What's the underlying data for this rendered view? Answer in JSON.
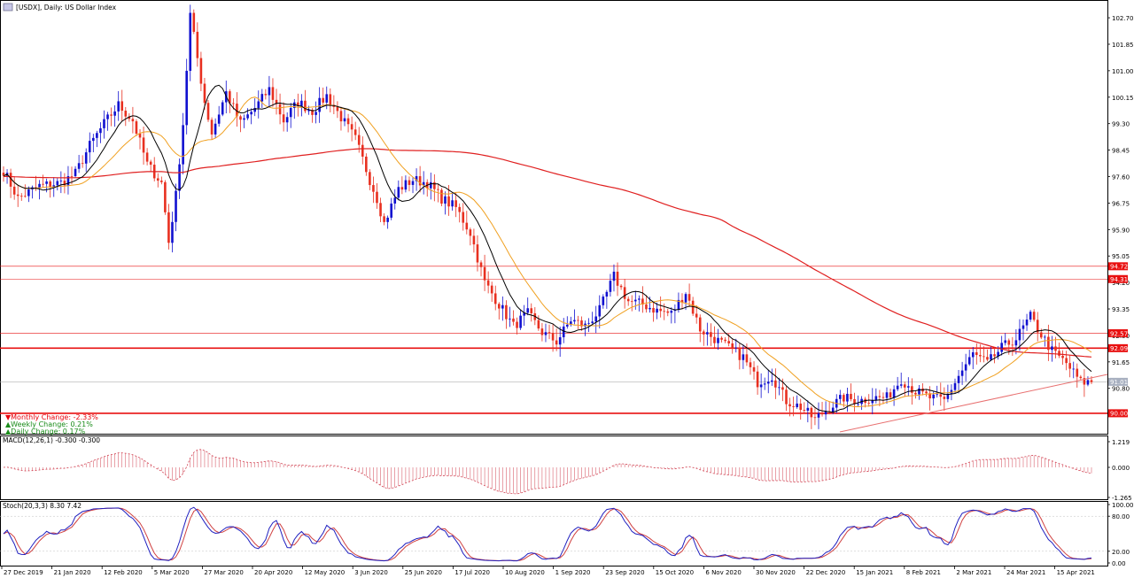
{
  "header": {
    "title": "[USDX], Daily:  US Dollar Index"
  },
  "stats": {
    "monthly": "▼Monthly Change: -2.33%",
    "weekly": "▲Weekly Change: 0.21%",
    "daily": "▲Daily Change: 0.17%"
  },
  "colors": {
    "bull": "#1010d0",
    "bear": "#e83020",
    "ma_fast": "#000000",
    "ma_mid": "#f0a020",
    "ma_slow": "#e02020",
    "level": "#e81010",
    "macd": "#d04050",
    "stoch_main": "#2020c0",
    "stoch_signal": "#d04040"
  },
  "chart_data": [
    {
      "type": "candlestick",
      "title": "[USDX], Daily:  US Dollar Index",
      "ylim": [
        89.4,
        103.1
      ],
      "price_ticks": [
        "102.70",
        "101.85",
        "101.00",
        "100.15",
        "99.30",
        "98.45",
        "97.60",
        "96.75",
        "95.90",
        "95.05",
        "94.20",
        "93.35",
        "92.50",
        "91.65",
        "90.80"
      ],
      "price_tick_values": [
        102.7,
        101.85,
        101.0,
        100.15,
        99.3,
        98.45,
        97.6,
        96.75,
        95.9,
        95.05,
        94.2,
        93.35,
        92.5,
        91.65,
        90.8
      ],
      "date_labels": [
        "27 Dec 2019",
        "21 Jan 2020",
        "12 Feb 2020",
        "5 Mar 2020",
        "27 Mar 2020",
        "20 Apr 2020",
        "12 May 2020",
        "3 Jun 2020",
        "25 Jun 2020",
        "17 Jul 2020",
        "10 Aug 2020",
        "1 Sep 2020",
        "23 Sep 2020",
        "15 Oct 2020",
        "6 Nov 2020",
        "30 Nov 2020",
        "22 Dec 2020",
        "15 Jan 2021",
        "8 Feb 2021",
        "2 Mar 2021",
        "24 Mar 2021",
        "15 Apr 2021"
      ],
      "horizontal_levels": [
        {
          "label": "94.72",
          "value": 94.72,
          "thick": false
        },
        {
          "label": "94.31",
          "value": 94.31,
          "thick": false
        },
        {
          "label": "92.57",
          "value": 92.57,
          "thick": false
        },
        {
          "label": "92.09",
          "value": 92.09,
          "thick": true
        },
        {
          "label": "90.00",
          "value": 90.0,
          "thick": true
        }
      ],
      "current_price": {
        "label": "91.01",
        "value": 91.01
      },
      "anchors": [
        {
          "i": 0,
          "p": 97.8
        },
        {
          "i": 4,
          "p": 96.9
        },
        {
          "i": 10,
          "p": 97.3
        },
        {
          "i": 16,
          "p": 97.4
        },
        {
          "i": 20,
          "p": 97.7
        },
        {
          "i": 24,
          "p": 98.6
        },
        {
          "i": 28,
          "p": 99.3
        },
        {
          "i": 32,
          "p": 99.9
        },
        {
          "i": 36,
          "p": 99.4
        },
        {
          "i": 40,
          "p": 98.0
        },
        {
          "i": 44,
          "p": 97.4
        },
        {
          "i": 46,
          "p": 95.5
        },
        {
          "i": 48,
          "p": 97.0
        },
        {
          "i": 50,
          "p": 99.3
        },
        {
          "i": 52,
          "p": 102.8
        },
        {
          "i": 56,
          "p": 100.0
        },
        {
          "i": 58,
          "p": 99.0
        },
        {
          "i": 62,
          "p": 100.3
        },
        {
          "i": 66,
          "p": 99.3
        },
        {
          "i": 70,
          "p": 99.8
        },
        {
          "i": 74,
          "p": 100.4
        },
        {
          "i": 78,
          "p": 99.4
        },
        {
          "i": 82,
          "p": 100.0
        },
        {
          "i": 86,
          "p": 99.7
        },
        {
          "i": 90,
          "p": 100.2
        },
        {
          "i": 94,
          "p": 99.5
        },
        {
          "i": 98,
          "p": 98.8
        },
        {
          "i": 102,
          "p": 97.5
        },
        {
          "i": 104,
          "p": 96.9
        },
        {
          "i": 106,
          "p": 96.1
        },
        {
          "i": 110,
          "p": 97.2
        },
        {
          "i": 114,
          "p": 97.5
        },
        {
          "i": 118,
          "p": 97.4
        },
        {
          "i": 122,
          "p": 96.9
        },
        {
          "i": 126,
          "p": 96.6
        },
        {
          "i": 130,
          "p": 95.8
        },
        {
          "i": 134,
          "p": 94.2
        },
        {
          "i": 138,
          "p": 93.5
        },
        {
          "i": 142,
          "p": 92.8
        },
        {
          "i": 146,
          "p": 93.2
        },
        {
          "i": 150,
          "p": 92.6
        },
        {
          "i": 154,
          "p": 92.3
        },
        {
          "i": 158,
          "p": 93.0
        },
        {
          "i": 162,
          "p": 92.8
        },
        {
          "i": 166,
          "p": 93.3
        },
        {
          "i": 170,
          "p": 94.4
        },
        {
          "i": 174,
          "p": 93.6
        },
        {
          "i": 178,
          "p": 93.5
        },
        {
          "i": 182,
          "p": 93.3
        },
        {
          "i": 186,
          "p": 93.2
        },
        {
          "i": 190,
          "p": 93.9
        },
        {
          "i": 194,
          "p": 92.7
        },
        {
          "i": 198,
          "p": 92.4
        },
        {
          "i": 202,
          "p": 92.1
        },
        {
          "i": 206,
          "p": 91.8
        },
        {
          "i": 210,
          "p": 91.0
        },
        {
          "i": 214,
          "p": 91.2
        },
        {
          "i": 218,
          "p": 90.4
        },
        {
          "i": 222,
          "p": 90.2
        },
        {
          "i": 226,
          "p": 89.8
        },
        {
          "i": 230,
          "p": 90.2
        },
        {
          "i": 234,
          "p": 90.5
        },
        {
          "i": 238,
          "p": 90.4
        },
        {
          "i": 242,
          "p": 90.5
        },
        {
          "i": 246,
          "p": 90.5
        },
        {
          "i": 250,
          "p": 91.1
        },
        {
          "i": 254,
          "p": 90.7
        },
        {
          "i": 258,
          "p": 90.5
        },
        {
          "i": 262,
          "p": 90.4
        },
        {
          "i": 266,
          "p": 91.2
        },
        {
          "i": 270,
          "p": 91.9
        },
        {
          "i": 274,
          "p": 91.6
        },
        {
          "i": 278,
          "p": 92.1
        },
        {
          "i": 282,
          "p": 92.4
        },
        {
          "i": 286,
          "p": 93.1
        },
        {
          "i": 288,
          "p": 92.7
        },
        {
          "i": 292,
          "p": 92.0
        },
        {
          "i": 296,
          "p": 91.6
        },
        {
          "i": 300,
          "p": 91.0
        },
        {
          "i": 303,
          "p": 91.0
        }
      ]
    },
    {
      "type": "bar",
      "title": "MACD(12,26,1) -0.300 -0.300",
      "y_ticks": [
        "1.219",
        "0.000",
        "-1.265"
      ],
      "y_tick_values": [
        1.219,
        0.0,
        -1.265
      ]
    },
    {
      "type": "line",
      "title": "Stoch(20,3,3) 8.30 7.42",
      "y_ticks": [
        "100.00",
        "80.00",
        "20.00",
        "0.00"
      ],
      "y_tick_values": [
        100,
        80,
        20,
        0
      ]
    }
  ]
}
